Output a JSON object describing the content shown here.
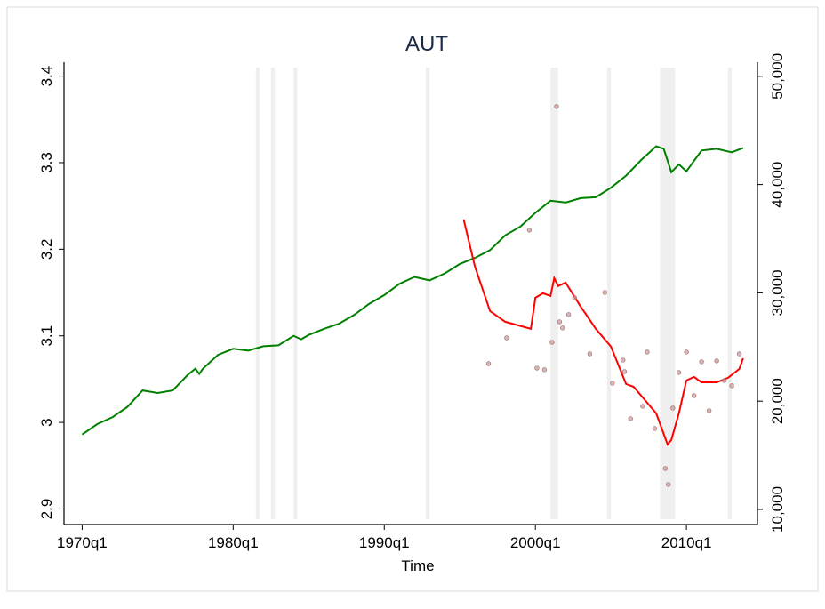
{
  "chart_data": {
    "type": "line",
    "title": "AUT",
    "xlabel": "Time",
    "xlim": [
      1968.8,
      2014.7
    ],
    "xticks": [
      {
        "value": 1970,
        "label": "1970q1"
      },
      {
        "value": 1980,
        "label": "1980q1"
      },
      {
        "value": 1990,
        "label": "1990q1"
      },
      {
        "value": 2000,
        "label": "2000q1"
      },
      {
        "value": 2010,
        "label": "2010q1"
      }
    ],
    "ylim": [
      2.882,
      3.416
    ],
    "yticks": [
      2.9,
      3,
      3.1,
      3.2,
      3.3,
      3.4
    ],
    "y2lim": [
      8600,
      51300
    ],
    "y2ticks": [
      {
        "value": 10000,
        "label": "10,000"
      },
      {
        "value": 20000,
        "label": "20,000"
      },
      {
        "value": 30000,
        "label": "30,000"
      },
      {
        "value": 40000,
        "label": "40,000"
      },
      {
        "value": 50000,
        "label": "50,000"
      }
    ],
    "shaded_periods": [
      [
        1981.5,
        1981.75
      ],
      [
        1982.5,
        1982.75
      ],
      [
        1984,
        1984.25
      ],
      [
        1992.75,
        1993
      ],
      [
        2001,
        2001.5
      ],
      [
        2004.75,
        2005
      ],
      [
        2008.25,
        2009.25
      ],
      [
        2012.75,
        2013
      ]
    ],
    "shade_color": "#efefef",
    "series": [
      {
        "color": "#008000",
        "mode": "line",
        "axis": "y",
        "x": [
          1970,
          1971,
          1972,
          1973,
          1974,
          1975,
          1976,
          1977,
          1977.5,
          1977.75,
          1978,
          1979,
          1980,
          1981,
          1982,
          1983,
          1984,
          1984.5,
          1985,
          1986,
          1987,
          1988,
          1989,
          1990,
          1991,
          1992,
          1993,
          1994,
          1995,
          1996,
          1997,
          1998,
          1999,
          2000,
          2001,
          2002,
          2003,
          2004,
          2005,
          2006,
          2007,
          2008,
          2008.5,
          2009,
          2009.5,
          2010,
          2011,
          2012,
          2013,
          2013.75
        ],
        "values": [
          2.986,
          2.998,
          3.006,
          3.018,
          3.037,
          3.034,
          3.037,
          3.055,
          3.062,
          3.056,
          3.062,
          3.078,
          3.085,
          3.083,
          3.088,
          3.089,
          3.1,
          3.096,
          3.101,
          3.108,
          3.114,
          3.124,
          3.137,
          3.147,
          3.16,
          3.168,
          3.164,
          3.172,
          3.183,
          3.19,
          3.199,
          3.216,
          3.226,
          3.242,
          3.256,
          3.254,
          3.259,
          3.26,
          3.271,
          3.285,
          3.303,
          3.319,
          3.316,
          3.289,
          3.298,
          3.29,
          3.314,
          3.316,
          3.312,
          3.317
        ]
      },
      {
        "color": "#ff0000",
        "mode": "line",
        "axis": "y2",
        "x": [
          1995.25,
          1996,
          1997,
          1998,
          1999.7,
          2000,
          2000.5,
          2001,
          2001.25,
          2001.5,
          2002,
          2003,
          2004,
          2005,
          2006,
          2006.5,
          2007,
          2008,
          2008.75,
          2009,
          2009.5,
          2010,
          2010.5,
          2011,
          2012,
          2012.75,
          2013.5,
          2013.75
        ],
        "values": [
          36780,
          32420,
          28320,
          27330,
          26670,
          29550,
          29960,
          29710,
          31360,
          30620,
          30940,
          28730,
          26670,
          25030,
          21580,
          21330,
          20510,
          18870,
          16000,
          16410,
          18870,
          21910,
          22240,
          21740,
          21740,
          22160,
          22980,
          23960
        ]
      },
      {
        "color": "#c89696",
        "mode": "scatter",
        "axis": "y2",
        "x": [
          1996.9,
          1998.1,
          1999.6,
          2000.1,
          2000.6,
          2001.1,
          2001.4,
          2001.6,
          2001.8,
          2002.2,
          2002.6,
          2003.6,
          2004.6,
          2005.1,
          2005.8,
          2005.9,
          2006.3,
          2007.1,
          2007.4,
          2007.9,
          2008.6,
          2008.8,
          2009.1,
          2009.5,
          2010,
          2010.5,
          2011,
          2011.5,
          2012,
          2012.5,
          2013,
          2013.5
        ],
        "values": [
          23470,
          25850,
          35790,
          23060,
          22900,
          25440,
          47210,
          27330,
          26760,
          27990,
          29550,
          24370,
          30040,
          21660,
          23800,
          22730,
          18380,
          19530,
          24540,
          17470,
          13780,
          12300,
          19360,
          22650,
          24540,
          20510,
          23630,
          19120,
          23720,
          21910,
          21420,
          24370
        ]
      }
    ]
  }
}
